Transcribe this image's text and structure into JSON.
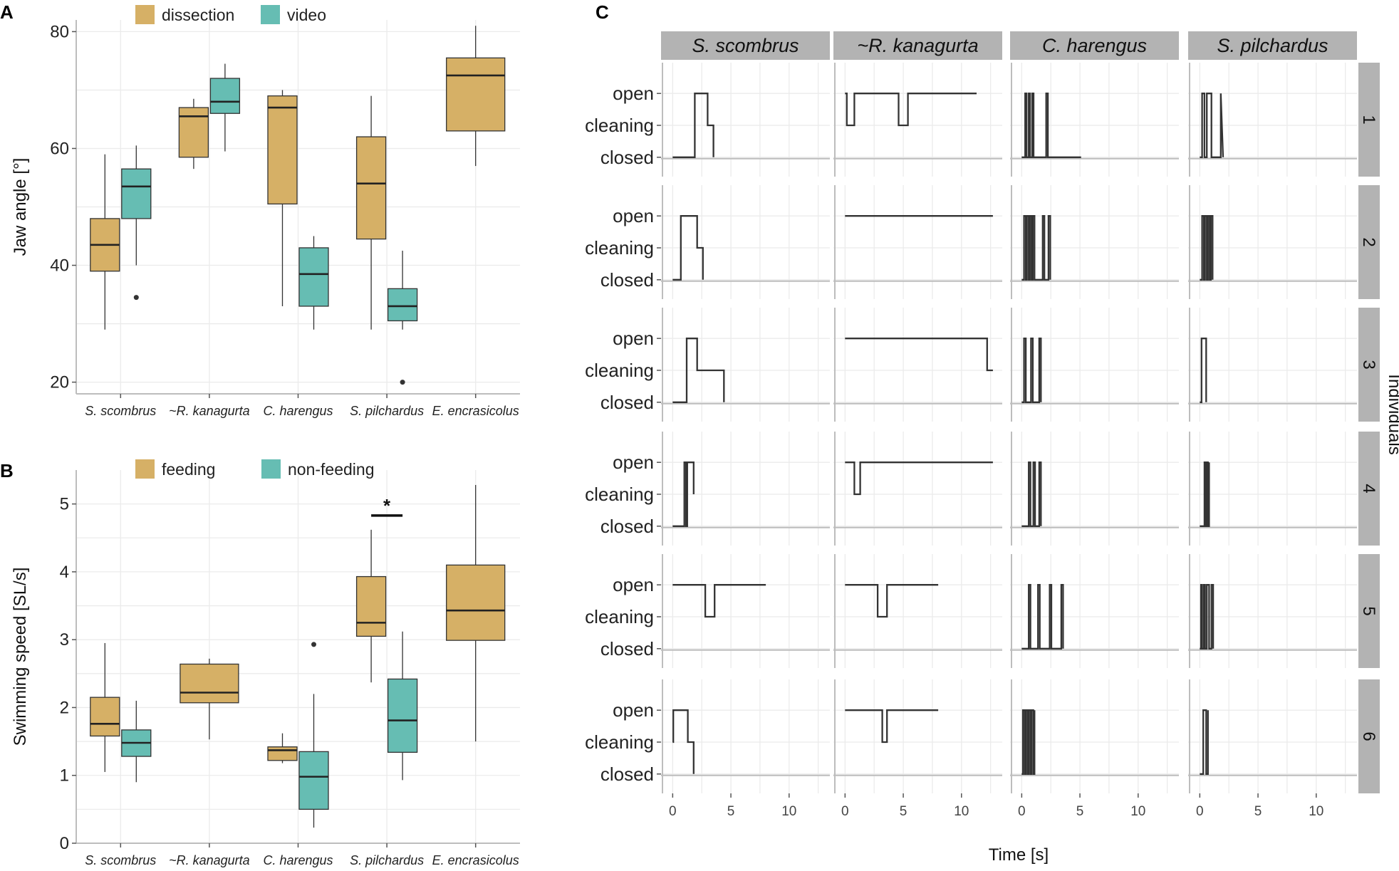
{
  "colors": {
    "dissection": "#d6b066",
    "video": "#66bdb3",
    "feeding": "#d6b066",
    "non_feeding": "#66bdb3",
    "line": "#333333",
    "strip": "#b3b3b3"
  },
  "chart_data": [
    {
      "panel": "A",
      "type": "boxplot",
      "ylabel": "Jaw angle [°]",
      "xlabel": "",
      "ylim": [
        18,
        82
      ],
      "yticks": [
        20,
        40,
        60,
        80
      ],
      "categories": [
        "S. scombrus",
        "~R. kanagurta",
        "C. harengus",
        "S. pilchardus",
        "E. encrasicolus"
      ],
      "legend": [
        "dissection",
        "video"
      ],
      "series": [
        {
          "name": "dissection",
          "boxes": [
            {
              "category": "S. scombrus",
              "min": 29,
              "q1": 39,
              "median": 43.5,
              "q3": 48,
              "max": 59,
              "outliers": []
            },
            {
              "category": "~R. kanagurta",
              "min": 56.5,
              "q1": 58.5,
              "median": 65.5,
              "q3": 67,
              "max": 68.5,
              "outliers": []
            },
            {
              "category": "C. harengus",
              "min": 33,
              "q1": 50.5,
              "median": 67,
              "q3": 69,
              "max": 70,
              "outliers": []
            },
            {
              "category": "S. pilchardus",
              "min": 29,
              "q1": 44.5,
              "median": 54,
              "q3": 62,
              "max": 69,
              "outliers": []
            },
            {
              "category": "E. encrasicolus",
              "min": 57,
              "q1": 63,
              "median": 72.5,
              "q3": 75.5,
              "max": 81,
              "outliers": []
            }
          ]
        },
        {
          "name": "video",
          "boxes": [
            {
              "category": "S. scombrus",
              "min": 40,
              "q1": 48,
              "median": 53.5,
              "q3": 56.5,
              "max": 60.5,
              "outliers": [
                34.5
              ]
            },
            {
              "category": "~R. kanagurta",
              "min": 59.5,
              "q1": 66,
              "median": 68,
              "q3": 72,
              "max": 74.5,
              "outliers": []
            },
            {
              "category": "C. harengus",
              "min": 29,
              "q1": 33,
              "median": 38.5,
              "q3": 43,
              "max": 45,
              "outliers": []
            },
            {
              "category": "S. pilchardus",
              "min": 29,
              "q1": 30.5,
              "median": 33,
              "q3": 36,
              "max": 42.5,
              "outliers": [
                20
              ]
            }
          ]
        }
      ]
    },
    {
      "panel": "B",
      "type": "boxplot",
      "ylabel": "Swimming speed [SL/s]",
      "xlabel": "",
      "ylim": [
        0,
        5.5
      ],
      "yticks": [
        0,
        1,
        2,
        3,
        4,
        5
      ],
      "categories": [
        "S. scombrus",
        "~R. kanagurta",
        "C. harengus",
        "S. pilchardus",
        "E. encrasicolus"
      ],
      "legend": [
        "feeding",
        "non-feeding"
      ],
      "annotation": {
        "text": "*",
        "category": "S. pilchardus",
        "y": 4.83
      },
      "series": [
        {
          "name": "feeding",
          "boxes": [
            {
              "category": "S. scombrus",
              "min": 1.05,
              "q1": 1.58,
              "median": 1.76,
              "q3": 2.15,
              "max": 2.95,
              "outliers": []
            },
            {
              "category": "~R. kanagurta",
              "min": 1.53,
              "q1": 2.07,
              "median": 2.22,
              "q3": 2.64,
              "max": 2.72,
              "outliers": []
            },
            {
              "category": "C. harengus",
              "min": 1.18,
              "q1": 1.22,
              "median": 1.37,
              "q3": 1.42,
              "max": 1.62,
              "outliers": []
            },
            {
              "category": "S. pilchardus",
              "min": 2.37,
              "q1": 3.05,
              "median": 3.25,
              "q3": 3.93,
              "max": 4.62,
              "outliers": []
            },
            {
              "category": "E. encrasicolus",
              "min": 1.5,
              "q1": 2.99,
              "median": 3.43,
              "q3": 4.1,
              "max": 5.28,
              "outliers": []
            }
          ]
        },
        {
          "name": "non-feeding",
          "boxes": [
            {
              "category": "S. scombrus",
              "min": 0.9,
              "q1": 1.28,
              "median": 1.48,
              "q3": 1.67,
              "max": 2.1,
              "outliers": []
            },
            {
              "category": "C. harengus",
              "min": 0.23,
              "q1": 0.5,
              "median": 0.98,
              "q3": 1.35,
              "max": 2.2,
              "outliers": [
                2.93
              ]
            },
            {
              "category": "S. pilchardus",
              "min": 0.93,
              "q1": 1.34,
              "median": 1.81,
              "q3": 2.42,
              "max": 3.12,
              "outliers": []
            }
          ]
        }
      ]
    },
    {
      "panel": "C",
      "type": "line",
      "xlabel": "Time [s]",
      "xlim": [
        -1,
        13.5
      ],
      "xticks": [
        0,
        5,
        10
      ],
      "y_levels": [
        "closed",
        "cleaning",
        "open"
      ],
      "row_strip_title": "Individuals",
      "columns": [
        "S. scombrus",
        "~R. kanagurta",
        "C. harengus",
        "S. pilchardus"
      ],
      "rows": [
        "1",
        "2",
        "3",
        "4",
        "5",
        "6"
      ],
      "series": [
        [
          {
            "t": [
              0,
              1.9,
              1.9,
              3.0,
              3.0,
              3.5,
              3.5
            ],
            "s": [
              0,
              0,
              2,
              2,
              1,
              1,
              0
            ]
          },
          {
            "t": [
              0,
              0.7,
              0.7,
              2.1,
              2.1,
              2.6,
              2.6
            ],
            "s": [
              0,
              0,
              2,
              2,
              1,
              1,
              0
            ]
          },
          {
            "t": [
              0,
              1.2,
              1.2,
              2.1,
              2.1,
              4.4,
              4.4
            ],
            "s": [
              0,
              0,
              2,
              2,
              1,
              1,
              0
            ]
          },
          {
            "t": [
              0,
              1.0,
              1.0,
              1.15,
              1.15,
              1.25,
              1.25,
              1.8,
              1.8
            ],
            "s": [
              0,
              0,
              2,
              2,
              0,
              0,
              2,
              2,
              1
            ]
          },
          {
            "t": [
              0,
              2.8,
              2.8,
              3.6,
              3.6,
              8.0
            ],
            "s": [
              2,
              2,
              1,
              1,
              2,
              2
            ]
          },
          {
            "t": [
              0,
              0.05,
              0.05,
              1.3,
              1.3,
              1.8,
              1.8
            ],
            "s": [
              1,
              1,
              2,
              2,
              1,
              1,
              0
            ]
          }
        ],
        [
          {
            "t": [
              0,
              0.15,
              0.15,
              0.8,
              0.8,
              4.6,
              4.6,
              5.4,
              5.4,
              11.3
            ],
            "s": [
              2,
              2,
              1,
              1,
              2,
              2,
              1,
              1,
              2,
              2
            ]
          },
          {
            "t": [
              0,
              12.7
            ],
            "s": [
              2,
              2
            ]
          },
          {
            "t": [
              0,
              12.2,
              12.2,
              12.7
            ],
            "s": [
              2,
              2,
              1,
              1
            ]
          },
          {
            "t": [
              0,
              0.8,
              0.8,
              1.3,
              1.3,
              12.7
            ],
            "s": [
              2,
              2,
              1,
              1,
              2,
              2
            ]
          },
          {
            "t": [
              0,
              2.8,
              2.8,
              3.6,
              3.6,
              8.0
            ],
            "s": [
              2,
              2,
              1,
              1,
              2,
              2
            ]
          },
          {
            "t": [
              0,
              3.2,
              3.2,
              3.6,
              3.6,
              8.0
            ],
            "s": [
              2,
              2,
              1,
              1,
              2,
              2
            ]
          }
        ],
        [
          {
            "t": [
              0,
              0.3,
              0.3,
              0.42,
              0.42,
              0.6,
              0.6,
              0.72,
              0.72,
              0.9,
              0.9,
              1.02,
              1.02,
              2.1,
              2.1,
              2.25,
              2.25,
              5.1
            ],
            "s": [
              0,
              0,
              2,
              2,
              0,
              0,
              2,
              2,
              0,
              0,
              2,
              2,
              0,
              0,
              2,
              2,
              0,
              0
            ]
          },
          {
            "t": [
              0,
              0.2,
              0.2,
              0.35,
              0.35,
              0.45,
              0.45,
              0.6,
              0.6,
              0.7,
              0.7,
              0.85,
              0.85,
              0.95,
              0.95,
              1.1,
              1.1,
              1.8,
              1.8,
              1.95,
              1.95,
              2.3,
              2.3,
              2.45,
              2.45
            ],
            "s": [
              0,
              0,
              2,
              2,
              0,
              0,
              2,
              2,
              0,
              0,
              2,
              2,
              0,
              0,
              2,
              2,
              0,
              0,
              2,
              2,
              0,
              0,
              2,
              2,
              0
            ]
          },
          {
            "t": [
              0,
              0.2,
              0.2,
              0.35,
              0.35,
              0.8,
              0.8,
              0.95,
              0.95,
              1.5,
              1.5,
              1.65,
              1.65
            ],
            "s": [
              0,
              0,
              2,
              2,
              0,
              0,
              2,
              2,
              0,
              0,
              2,
              2,
              0
            ]
          },
          {
            "t": [
              0,
              0.6,
              0.6,
              0.75,
              0.75,
              1.0,
              1.0,
              1.15,
              1.15,
              1.5,
              1.5,
              1.65,
              1.65
            ],
            "s": [
              0,
              0,
              2,
              2,
              0,
              0,
              2,
              2,
              0,
              0,
              2,
              2,
              0
            ]
          },
          {
            "t": [
              0,
              0.6,
              0.6,
              0.75,
              0.75,
              1.4,
              1.4,
              1.55,
              1.55,
              2.4,
              2.4,
              2.55,
              2.55,
              3.4,
              3.4,
              3.55,
              3.55
            ],
            "s": [
              0,
              0,
              2,
              2,
              0,
              0,
              2,
              2,
              0,
              0,
              2,
              2,
              0,
              0,
              2,
              2,
              0
            ]
          },
          {
            "t": [
              0,
              0.1,
              0.1,
              0.25,
              0.25,
              0.35,
              0.35,
              0.5,
              0.5,
              0.6,
              0.6,
              0.75,
              0.75,
              0.85,
              0.85,
              1.0,
              1.0,
              1.1,
              1.1
            ],
            "s": [
              0,
              0,
              2,
              2,
              0,
              0,
              2,
              2,
              0,
              0,
              2,
              2,
              0,
              0,
              2,
              2,
              0,
              0,
              2
            ]
          }
        ],
        [
          {
            "t": [
              0,
              0.2,
              0.2,
              0.4,
              0.4,
              0.6,
              0.6,
              1.0,
              1.0,
              1.8,
              1.8,
              2.0
            ],
            "s": [
              0,
              0,
              2,
              2,
              0,
              0,
              2,
              2,
              0,
              0,
              2,
              0
            ]
          },
          {
            "t": [
              0,
              0.2,
              0.2,
              0.35,
              0.35,
              0.45,
              0.45,
              0.6,
              0.6,
              0.7,
              0.7,
              0.85,
              0.85,
              0.95,
              0.95,
              1.1,
              1.1
            ],
            "s": [
              0,
              0,
              2,
              2,
              0,
              0,
              2,
              2,
              0,
              0,
              2,
              2,
              0,
              0,
              2,
              2,
              0
            ]
          },
          {
            "t": [
              0,
              0.15,
              0.15,
              0.55,
              0.55
            ],
            "s": [
              0,
              0,
              2,
              2,
              0
            ]
          },
          {
            "t": [
              0,
              0.4,
              0.4,
              0.5,
              0.5,
              0.6,
              0.6,
              0.7,
              0.7,
              0.8,
              0.8
            ],
            "s": [
              0,
              0,
              2,
              2,
              0,
              0,
              2,
              2,
              0,
              0,
              2
            ]
          },
          {
            "t": [
              0,
              0.1,
              0.1,
              0.2,
              0.2,
              0.35,
              0.35,
              0.45,
              0.45,
              0.6,
              0.6,
              0.8,
              0.8,
              1.0,
              1.0,
              1.15,
              1.15
            ],
            "s": [
              0,
              0,
              2,
              2,
              0,
              0,
              2,
              2,
              0,
              0,
              2,
              2,
              0,
              0,
              2,
              2,
              0
            ]
          },
          {
            "t": [
              0,
              0.3,
              0.3,
              0.55,
              0.55,
              0.7,
              0.7
            ],
            "s": [
              0,
              0,
              2,
              2,
              0,
              0,
              2
            ]
          }
        ]
      ]
    }
  ]
}
